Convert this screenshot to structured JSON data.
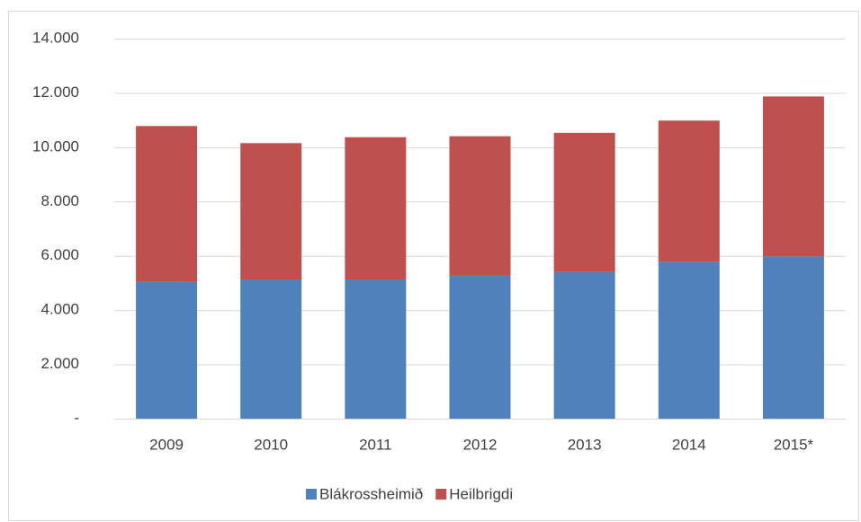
{
  "chart_data": {
    "type": "stacked_bar",
    "categories": [
      "2009",
      "2010",
      "2011",
      "2012",
      "2013",
      "2014",
      "2015*"
    ],
    "series": [
      {
        "name": "Blákrossheimið",
        "color": "#4f81bd",
        "values": [
          5040,
          5130,
          5130,
          5265,
          5400,
          5780,
          5980
        ]
      },
      {
        "name": "Heilbrigdi",
        "color": "#c0504d",
        "values": [
          5740,
          5020,
          5240,
          5140,
          5130,
          5200,
          5890
        ]
      }
    ],
    "ylim": [
      0,
      14000
    ],
    "yticks": [
      {
        "value": 0,
        "label": "-"
      },
      {
        "value": 2000,
        "label": "2.000"
      },
      {
        "value": 4000,
        "label": "4.000"
      },
      {
        "value": 6000,
        "label": "6.000"
      },
      {
        "value": 8000,
        "label": "8.000"
      },
      {
        "value": 10000,
        "label": "10.000"
      },
      {
        "value": 12000,
        "label": "12.000"
      },
      {
        "value": 14000,
        "label": "14.000"
      }
    ],
    "grid": true,
    "legend": "bottom"
  }
}
